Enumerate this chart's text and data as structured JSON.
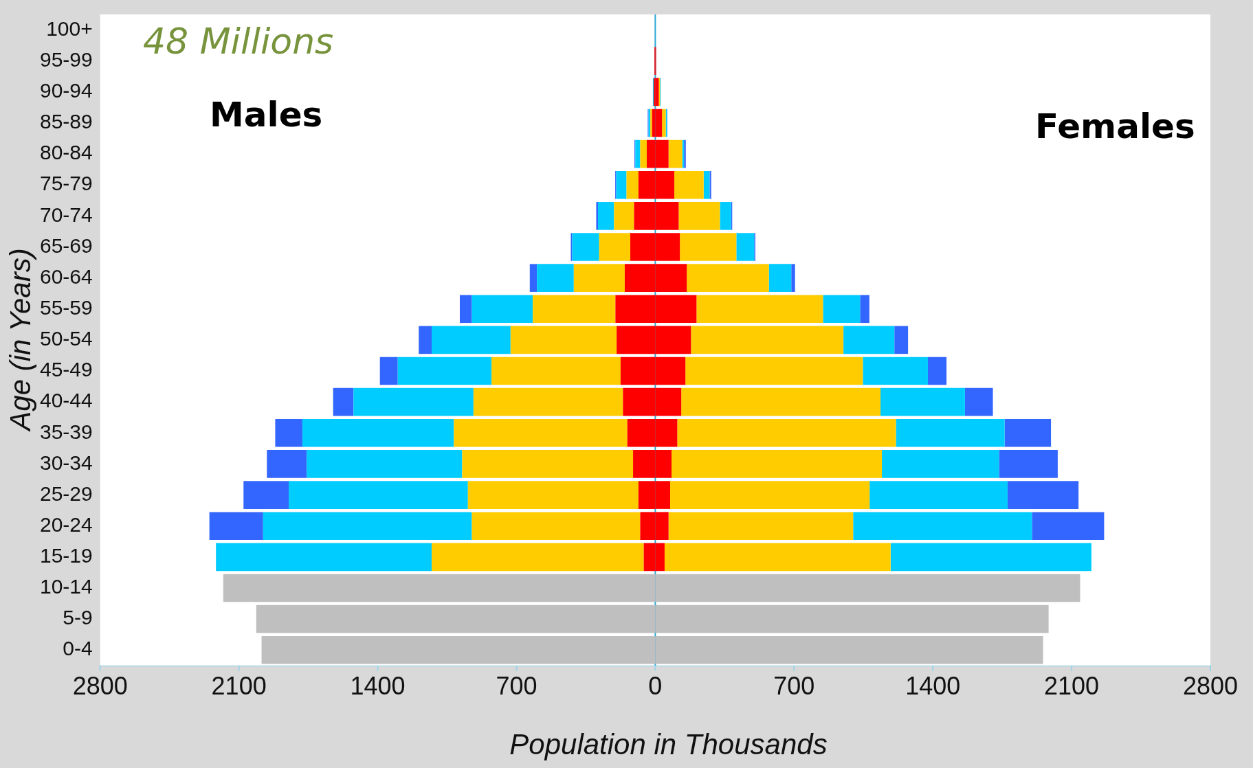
{
  "chart_data": {
    "type": "bar",
    "orientation": "horizontal",
    "stacked": true,
    "xlabel": "Population in Thousands",
    "ylabel": "Age (in Years)",
    "annotations": [
      "48 Millions",
      "Males",
      "Females"
    ],
    "categories": [
      "100+",
      "95-99",
      "90-94",
      "85-89",
      "80-84",
      "75-79",
      "70-74",
      "65-69",
      "60-64",
      "55-59",
      "50-54",
      "45-49",
      "40-44",
      "35-39",
      "30-34",
      "25-29",
      "20-24",
      "15-19",
      "10-14",
      "5-9",
      "0-4"
    ],
    "series": [
      {
        "color": "#ff0000",
        "values": [
          null,
          -4,
          -8,
          -16,
          -43,
          -85,
          -107,
          -126,
          -154,
          -201,
          -195,
          -175,
          -163,
          -141,
          -112,
          -85,
          -76,
          -58,
          null,
          null,
          null
        ]
      },
      {
        "color": "#ffcc00",
        "values": [
          null,
          null,
          null,
          -9,
          -33,
          -60,
          -101,
          -157,
          -257,
          -417,
          -535,
          -651,
          -754,
          -875,
          -862,
          -860,
          -849,
          -1070,
          null,
          null,
          null
        ]
      },
      {
        "color": "#00ccff",
        "values": [
          null,
          null,
          -4,
          -9,
          -25,
          -52,
          -81,
          -136,
          -186,
          -307,
          -398,
          -473,
          -605,
          -764,
          -784,
          -904,
          -1053,
          -1088,
          null,
          null,
          null
        ]
      },
      {
        "color": "#3366ff",
        "values": [
          null,
          null,
          null,
          -4,
          -4,
          -5,
          -9,
          -7,
          -36,
          -61,
          -65,
          -90,
          -103,
          -137,
          -201,
          -228,
          -271,
          null,
          null,
          null,
          null
        ]
      },
      {
        "color": "#bfbfbf",
        "values": [
          null,
          null,
          null,
          null,
          null,
          null,
          null,
          null,
          null,
          null,
          null,
          null,
          null,
          null,
          null,
          null,
          null,
          null,
          -2179,
          -2013,
          -1986
        ]
      },
      {
        "color": "#ff0000",
        "values": [
          null,
          4,
          18,
          34,
          67,
          96,
          118,
          124,
          159,
          208,
          180,
          152,
          131,
          111,
          82,
          75,
          67,
          47,
          null,
          null,
          null
        ]
      },
      {
        "color": "#ffcc00",
        "values": [
          null,
          null,
          6,
          19,
          69,
          148,
          208,
          285,
          414,
          638,
          769,
          895,
          1005,
          1103,
          1061,
          1006,
          931,
          1140,
          null,
          null,
          null
        ]
      },
      {
        "color": "#00ccff",
        "values": [
          null,
          null,
          4,
          6,
          9,
          30,
          56,
          90,
          113,
          187,
          257,
          328,
          426,
          548,
          591,
          696,
          902,
          1013,
          null,
          null,
          null
        ]
      },
      {
        "color": "#3366ff",
        "values": [
          null,
          null,
          null,
          2,
          9,
          8,
          6,
          6,
          19,
          47,
          69,
          94,
          141,
          234,
          296,
          358,
          364,
          null,
          null,
          null,
          null
        ]
      },
      {
        "color": "#bfbfbf",
        "values": [
          null,
          null,
          null,
          null,
          null,
          null,
          null,
          null,
          null,
          null,
          null,
          null,
          null,
          null,
          null,
          null,
          null,
          null,
          2143,
          1984,
          1956
        ]
      }
    ],
    "xlim": [
      -2800,
      2800
    ],
    "xticks": [
      {
        "value": -2800,
        "label": "2800"
      },
      {
        "value": -2100,
        "label": "2100"
      },
      {
        "value": -1400,
        "label": "1400"
      },
      {
        "value": -700,
        "label": "700"
      },
      0,
      {
        "value": 700,
        "label": "700"
      },
      {
        "value": 1400,
        "label": "1400"
      },
      {
        "value": 2100,
        "label": "2100"
      },
      {
        "value": 2800,
        "label": "2800"
      }
    ],
    "ref_lines": [
      {
        "axis": "x",
        "value": 0,
        "color": "#29a8d8"
      }
    ],
    "grid": false,
    "legend": false
  }
}
